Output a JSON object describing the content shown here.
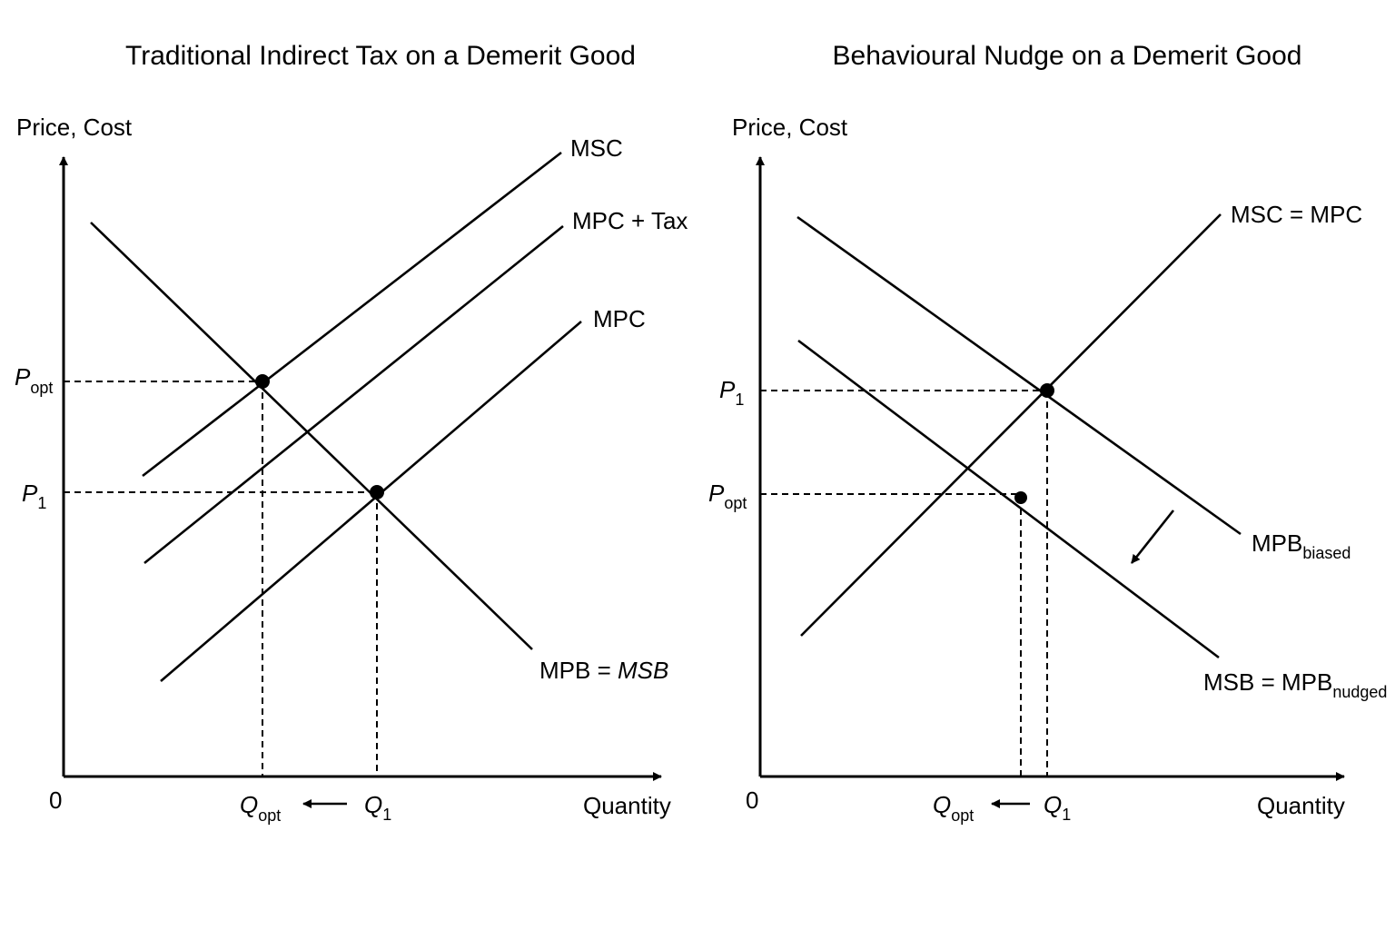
{
  "panels": [
    {
      "title": "Traditional Indirect Tax on a Demerit Good",
      "ylabel": "Price, Cost",
      "xlabel": "Quantity",
      "origin": "0",
      "curves": {
        "msc": "MSC",
        "mpc_tax": "MPC + Tax",
        "mpc": "MPC",
        "demand": "MPB = ",
        "demand_italic": "MSB"
      },
      "p_opt": {
        "main": "P",
        "sub": "opt"
      },
      "p1": {
        "main": "P",
        "sub": "1"
      },
      "q_opt": {
        "main": "Q",
        "sub": "opt"
      },
      "q1": {
        "main": "Q",
        "sub": "1"
      }
    },
    {
      "title": "Behavioural Nudge on a Demerit Good",
      "ylabel": "Price, Cost",
      "xlabel": "Quantity",
      "origin": "0",
      "curves": {
        "supply": "MSC = MPC",
        "mpb_biased": {
          "main": "MPB",
          "sub": "biased"
        },
        "msb_nudged": {
          "main": "MSB = MPB",
          "sub": "nudged"
        }
      },
      "p1": {
        "main": "P",
        "sub": "1"
      },
      "p_opt": {
        "main": "P",
        "sub": "opt"
      },
      "q_opt": {
        "main": "Q",
        "sub": "opt"
      },
      "q1": {
        "main": "Q",
        "sub": "1"
      }
    }
  ]
}
